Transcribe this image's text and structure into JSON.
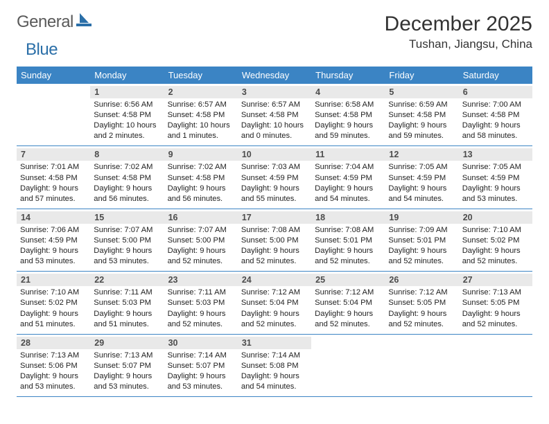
{
  "logo": {
    "text1": "General",
    "text2": "Blue",
    "text1_color": "#6a6a6a",
    "text2_color": "#2b6fa8",
    "boat_color": "#2b6fa8"
  },
  "header": {
    "month_title": "December 2025",
    "location": "Tushan, Jiangsu, China"
  },
  "colors": {
    "header_bg": "#3b84c4",
    "header_fg": "#ffffff",
    "daynum_bg": "#e9e9e9",
    "rule": "#3b84c4"
  },
  "day_names": [
    "Sunday",
    "Monday",
    "Tuesday",
    "Wednesday",
    "Thursday",
    "Friday",
    "Saturday"
  ],
  "weeks": [
    [
      {
        "blank": true
      },
      {
        "day": "1",
        "sunrise": "Sunrise: 6:56 AM",
        "sunset": "Sunset: 4:58 PM",
        "daylight1": "Daylight: 10 hours",
        "daylight2": "and 2 minutes."
      },
      {
        "day": "2",
        "sunrise": "Sunrise: 6:57 AM",
        "sunset": "Sunset: 4:58 PM",
        "daylight1": "Daylight: 10 hours",
        "daylight2": "and 1 minutes."
      },
      {
        "day": "3",
        "sunrise": "Sunrise: 6:57 AM",
        "sunset": "Sunset: 4:58 PM",
        "daylight1": "Daylight: 10 hours",
        "daylight2": "and 0 minutes."
      },
      {
        "day": "4",
        "sunrise": "Sunrise: 6:58 AM",
        "sunset": "Sunset: 4:58 PM",
        "daylight1": "Daylight: 9 hours",
        "daylight2": "and 59 minutes."
      },
      {
        "day": "5",
        "sunrise": "Sunrise: 6:59 AM",
        "sunset": "Sunset: 4:58 PM",
        "daylight1": "Daylight: 9 hours",
        "daylight2": "and 59 minutes."
      },
      {
        "day": "6",
        "sunrise": "Sunrise: 7:00 AM",
        "sunset": "Sunset: 4:58 PM",
        "daylight1": "Daylight: 9 hours",
        "daylight2": "and 58 minutes."
      }
    ],
    [
      {
        "day": "7",
        "sunrise": "Sunrise: 7:01 AM",
        "sunset": "Sunset: 4:58 PM",
        "daylight1": "Daylight: 9 hours",
        "daylight2": "and 57 minutes."
      },
      {
        "day": "8",
        "sunrise": "Sunrise: 7:02 AM",
        "sunset": "Sunset: 4:58 PM",
        "daylight1": "Daylight: 9 hours",
        "daylight2": "and 56 minutes."
      },
      {
        "day": "9",
        "sunrise": "Sunrise: 7:02 AM",
        "sunset": "Sunset: 4:58 PM",
        "daylight1": "Daylight: 9 hours",
        "daylight2": "and 56 minutes."
      },
      {
        "day": "10",
        "sunrise": "Sunrise: 7:03 AM",
        "sunset": "Sunset: 4:59 PM",
        "daylight1": "Daylight: 9 hours",
        "daylight2": "and 55 minutes."
      },
      {
        "day": "11",
        "sunrise": "Sunrise: 7:04 AM",
        "sunset": "Sunset: 4:59 PM",
        "daylight1": "Daylight: 9 hours",
        "daylight2": "and 54 minutes."
      },
      {
        "day": "12",
        "sunrise": "Sunrise: 7:05 AM",
        "sunset": "Sunset: 4:59 PM",
        "daylight1": "Daylight: 9 hours",
        "daylight2": "and 54 minutes."
      },
      {
        "day": "13",
        "sunrise": "Sunrise: 7:05 AM",
        "sunset": "Sunset: 4:59 PM",
        "daylight1": "Daylight: 9 hours",
        "daylight2": "and 53 minutes."
      }
    ],
    [
      {
        "day": "14",
        "sunrise": "Sunrise: 7:06 AM",
        "sunset": "Sunset: 4:59 PM",
        "daylight1": "Daylight: 9 hours",
        "daylight2": "and 53 minutes."
      },
      {
        "day": "15",
        "sunrise": "Sunrise: 7:07 AM",
        "sunset": "Sunset: 5:00 PM",
        "daylight1": "Daylight: 9 hours",
        "daylight2": "and 53 minutes."
      },
      {
        "day": "16",
        "sunrise": "Sunrise: 7:07 AM",
        "sunset": "Sunset: 5:00 PM",
        "daylight1": "Daylight: 9 hours",
        "daylight2": "and 52 minutes."
      },
      {
        "day": "17",
        "sunrise": "Sunrise: 7:08 AM",
        "sunset": "Sunset: 5:00 PM",
        "daylight1": "Daylight: 9 hours",
        "daylight2": "and 52 minutes."
      },
      {
        "day": "18",
        "sunrise": "Sunrise: 7:08 AM",
        "sunset": "Sunset: 5:01 PM",
        "daylight1": "Daylight: 9 hours",
        "daylight2": "and 52 minutes."
      },
      {
        "day": "19",
        "sunrise": "Sunrise: 7:09 AM",
        "sunset": "Sunset: 5:01 PM",
        "daylight1": "Daylight: 9 hours",
        "daylight2": "and 52 minutes."
      },
      {
        "day": "20",
        "sunrise": "Sunrise: 7:10 AM",
        "sunset": "Sunset: 5:02 PM",
        "daylight1": "Daylight: 9 hours",
        "daylight2": "and 52 minutes."
      }
    ],
    [
      {
        "day": "21",
        "sunrise": "Sunrise: 7:10 AM",
        "sunset": "Sunset: 5:02 PM",
        "daylight1": "Daylight: 9 hours",
        "daylight2": "and 51 minutes."
      },
      {
        "day": "22",
        "sunrise": "Sunrise: 7:11 AM",
        "sunset": "Sunset: 5:03 PM",
        "daylight1": "Daylight: 9 hours",
        "daylight2": "and 51 minutes."
      },
      {
        "day": "23",
        "sunrise": "Sunrise: 7:11 AM",
        "sunset": "Sunset: 5:03 PM",
        "daylight1": "Daylight: 9 hours",
        "daylight2": "and 52 minutes."
      },
      {
        "day": "24",
        "sunrise": "Sunrise: 7:12 AM",
        "sunset": "Sunset: 5:04 PM",
        "daylight1": "Daylight: 9 hours",
        "daylight2": "and 52 minutes."
      },
      {
        "day": "25",
        "sunrise": "Sunrise: 7:12 AM",
        "sunset": "Sunset: 5:04 PM",
        "daylight1": "Daylight: 9 hours",
        "daylight2": "and 52 minutes."
      },
      {
        "day": "26",
        "sunrise": "Sunrise: 7:12 AM",
        "sunset": "Sunset: 5:05 PM",
        "daylight1": "Daylight: 9 hours",
        "daylight2": "and 52 minutes."
      },
      {
        "day": "27",
        "sunrise": "Sunrise: 7:13 AM",
        "sunset": "Sunset: 5:05 PM",
        "daylight1": "Daylight: 9 hours",
        "daylight2": "and 52 minutes."
      }
    ],
    [
      {
        "day": "28",
        "sunrise": "Sunrise: 7:13 AM",
        "sunset": "Sunset: 5:06 PM",
        "daylight1": "Daylight: 9 hours",
        "daylight2": "and 53 minutes."
      },
      {
        "day": "29",
        "sunrise": "Sunrise: 7:13 AM",
        "sunset": "Sunset: 5:07 PM",
        "daylight1": "Daylight: 9 hours",
        "daylight2": "and 53 minutes."
      },
      {
        "day": "30",
        "sunrise": "Sunrise: 7:14 AM",
        "sunset": "Sunset: 5:07 PM",
        "daylight1": "Daylight: 9 hours",
        "daylight2": "and 53 minutes."
      },
      {
        "day": "31",
        "sunrise": "Sunrise: 7:14 AM",
        "sunset": "Sunset: 5:08 PM",
        "daylight1": "Daylight: 9 hours",
        "daylight2": "and 54 minutes."
      },
      {
        "blank": true
      },
      {
        "blank": true
      },
      {
        "blank": true
      }
    ]
  ]
}
